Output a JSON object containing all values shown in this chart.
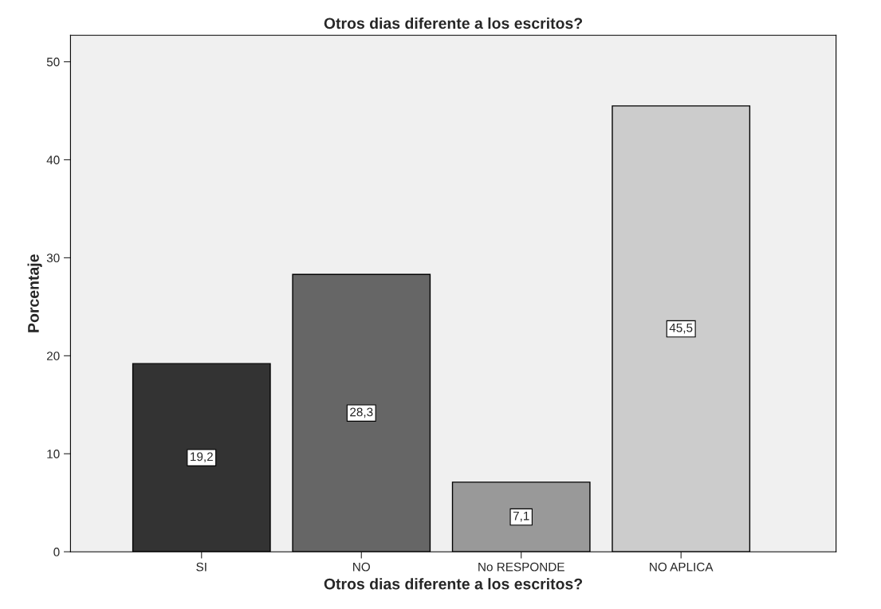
{
  "chart_data": {
    "type": "bar",
    "title": "Otros dias diferente a los escritos?",
    "xlabel": "Otros dias diferente a los escritos?",
    "ylabel": "Porcentaje",
    "categories": [
      "SI",
      "NO",
      "No RESPONDE",
      "NO APLICA"
    ],
    "values": [
      19.2,
      28.3,
      7.1,
      45.5
    ],
    "colors": [
      "#333333",
      "#666666",
      "#999999",
      "#cccccc"
    ],
    "value_labels": [
      "19,2",
      "28,3",
      "7,1",
      "45,5"
    ],
    "ylim": [
      0,
      52.7
    ],
    "yticks": [
      0,
      10,
      20,
      30,
      40,
      50
    ],
    "grid": false,
    "legend": false
  }
}
